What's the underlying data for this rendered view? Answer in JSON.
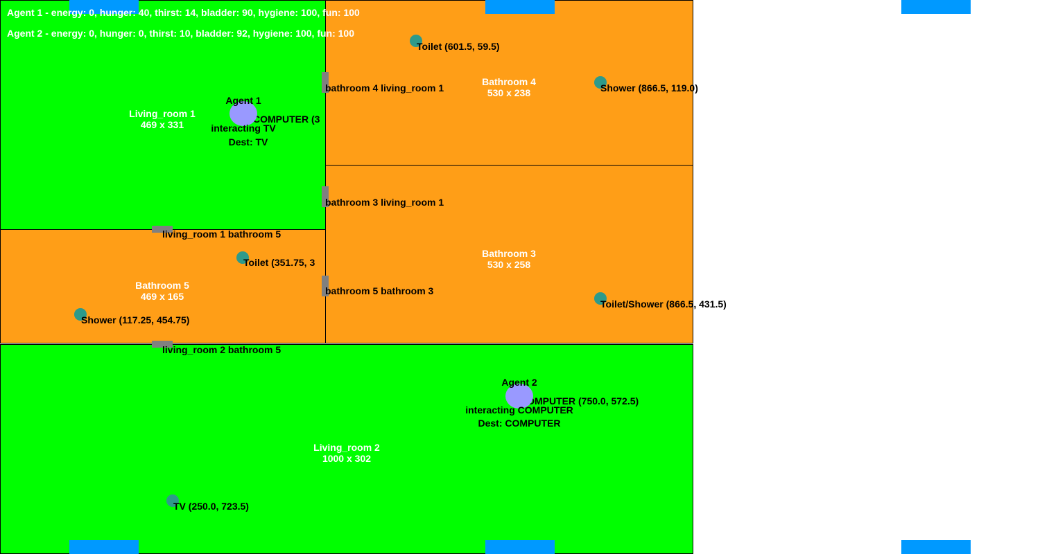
{
  "hud": {
    "agent1": "Agent 1 - energy: 0, hunger: 40, thirst: 14, bladder: 90, hygiene: 100, fun: 100",
    "agent2": "Agent 2 - energy: 0, hunger: 0, thirst: 10, bladder: 92, hygiene: 100, fun: 100"
  },
  "colors": {
    "living": "#00ff00",
    "bathroom": "#ff9e17",
    "object": "#2e9a8a",
    "door": "#808080",
    "window": "#0099ff",
    "agent": "#9999ff"
  },
  "rooms": {
    "living_room_1": {
      "name": "Living_room 1",
      "size": "469 x 331"
    },
    "bathroom_4": {
      "name": "Bathroom 4",
      "size": "530 x 238"
    },
    "bathroom_3": {
      "name": "Bathroom 3",
      "size": "530 x 258"
    },
    "bathroom_5": {
      "name": "Bathroom 5",
      "size": "469 x 165"
    },
    "living_room_2": {
      "name": "Living_room 2",
      "size": "1000 x 302"
    }
  },
  "objects": {
    "toilet_b4": "Toilet (601.5, 59.5)",
    "shower_b4": "Shower (866.5, 119.0)",
    "toilet_b5": "Toilet (351.75, 3",
    "shower_b5": "Shower (117.25, 454.75)",
    "b3_overlap": "Toilet/Shower (866.5, 431.5)",
    "tv_lr2": "TV (250.0, 723.5)",
    "computer_lr2": "COMPUTER (750.0, 572.5)",
    "lr1_overlap": "COMPUTER (3"
  },
  "doors": {
    "b4_lr1": "bathroom 4 living_room 1",
    "b3_lr1": "bathroom 3 living_room 1",
    "lr1_b5": "living_room 1 bathroom 5",
    "b5_b3": "bathroom 5 bathroom 3",
    "lr2_b5": "living_room 2 bathroom 5"
  },
  "agents": {
    "agent1": {
      "name": "Agent 1",
      "status": "interacting TV",
      "dest": "Dest: TV"
    },
    "agent2": {
      "name": "Agent 2",
      "status": "interacting COMPUTER",
      "dest": "Dest: COMPUTER"
    }
  }
}
